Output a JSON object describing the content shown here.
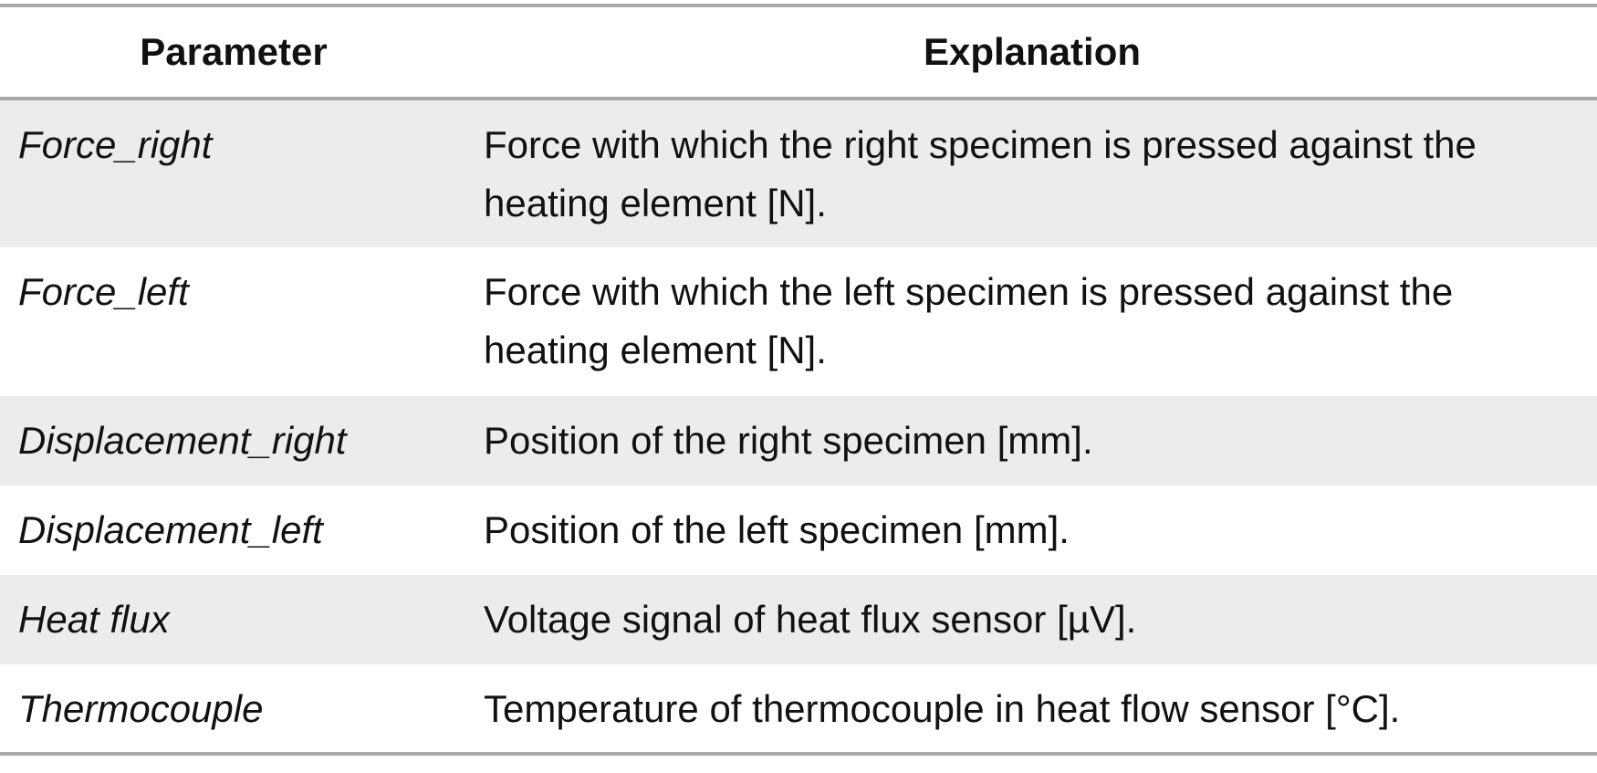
{
  "table": {
    "headers": {
      "parameter": "Parameter",
      "explanation": "Explanation"
    },
    "rows": [
      {
        "parameter": "Force_right",
        "explanation": "Force with which the right specimen is pressed against the heating element [N]."
      },
      {
        "parameter": "Force_left",
        "explanation": "Force with which the left specimen is pressed against the heating element [N]."
      },
      {
        "parameter": "Displacement_right",
        "explanation": "Position of the right specimen [mm]."
      },
      {
        "parameter": "Displacement_left",
        "explanation": "Position of the left specimen [mm]."
      },
      {
        "parameter": "Heat flux",
        "explanation": "Voltage signal of heat flux sensor [µV]."
      },
      {
        "parameter": "Thermocouple",
        "explanation": "Temperature of thermocouple in heat flow sensor [°C]."
      }
    ]
  },
  "colors": {
    "shaded_row": "#ececec",
    "rule": "#a9a9a9"
  }
}
